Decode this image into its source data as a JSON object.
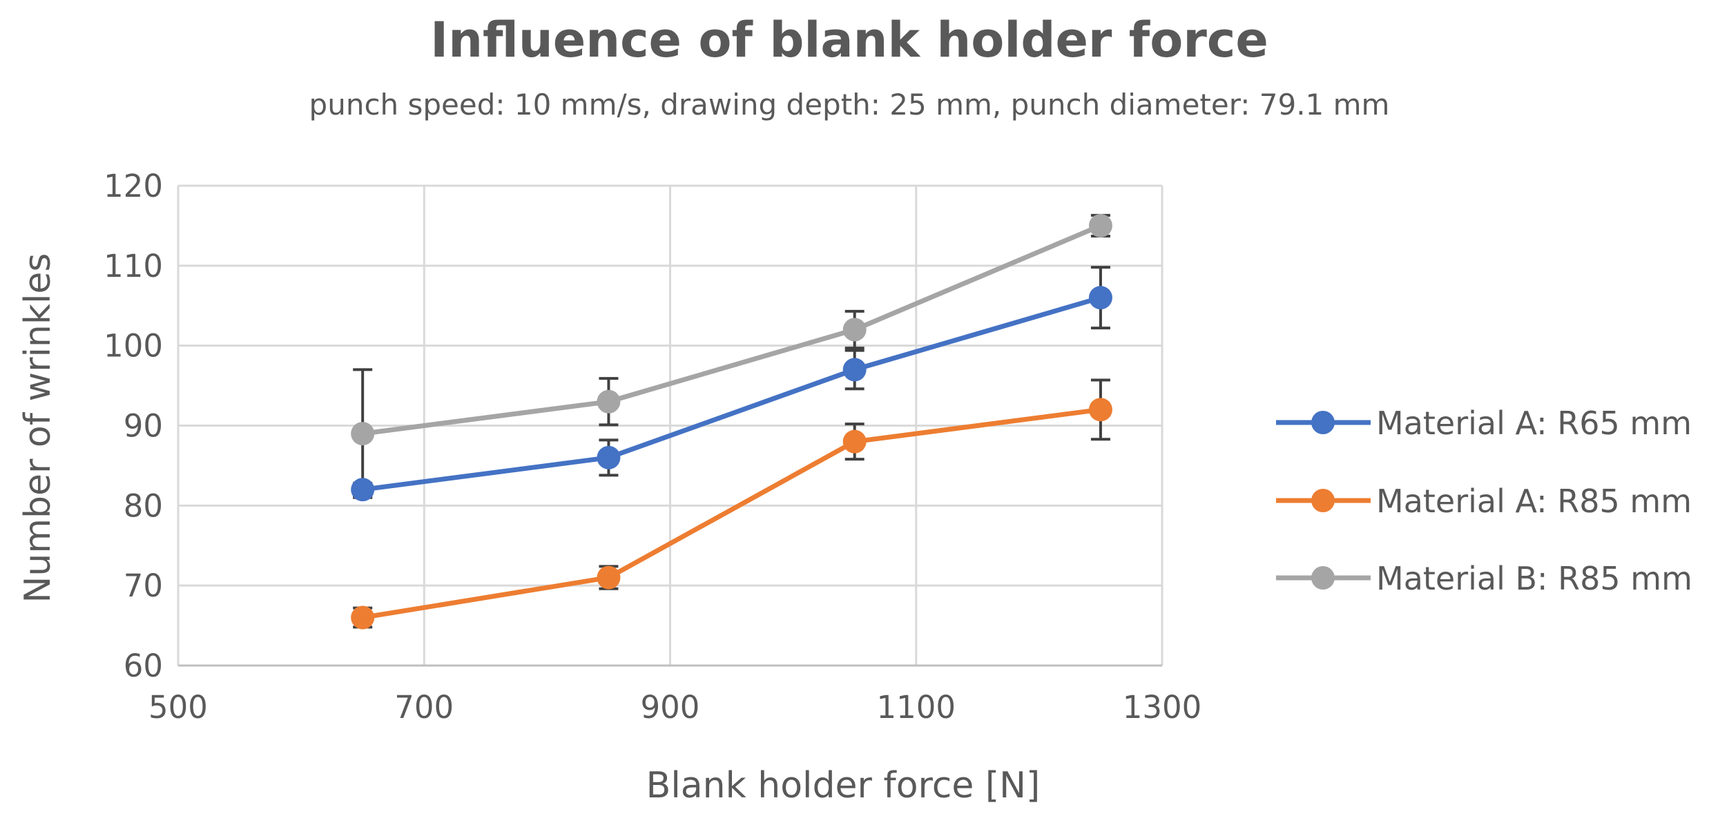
{
  "chart_data": {
    "type": "line",
    "title": "Influence of blank holder force",
    "subtitle": "punch speed: 10 mm/s, drawing depth: 25 mm, punch diameter: 79.1 mm",
    "xlabel": "Blank holder force [N]",
    "ylabel": "Number of wrinkles",
    "xlim": [
      500,
      1300
    ],
    "ylim": [
      60,
      120
    ],
    "xticks": [
      500,
      700,
      900,
      1100,
      1300
    ],
    "yticks": [
      60,
      70,
      80,
      90,
      100,
      110,
      120
    ],
    "grid": true,
    "legend_position": "right",
    "x": [
      650,
      850,
      1050,
      1250
    ],
    "series": [
      {
        "name": "Material A: R65 mm",
        "color": "#4472C4",
        "values": [
          82,
          86,
          97,
          106
        ],
        "error": [
          0.8,
          2.2,
          2.4,
          3.8
        ]
      },
      {
        "name": "Material A: R85 mm",
        "color": "#ED7D31",
        "values": [
          66,
          71,
          88,
          92
        ],
        "error": [
          1.2,
          1.4,
          2.2,
          3.7
        ]
      },
      {
        "name": "Material B: R85 mm",
        "color": "#A5A5A5",
        "values": [
          89,
          93,
          102,
          115
        ],
        "error": [
          8,
          2.9,
          2.3,
          1.3
        ]
      }
    ]
  }
}
